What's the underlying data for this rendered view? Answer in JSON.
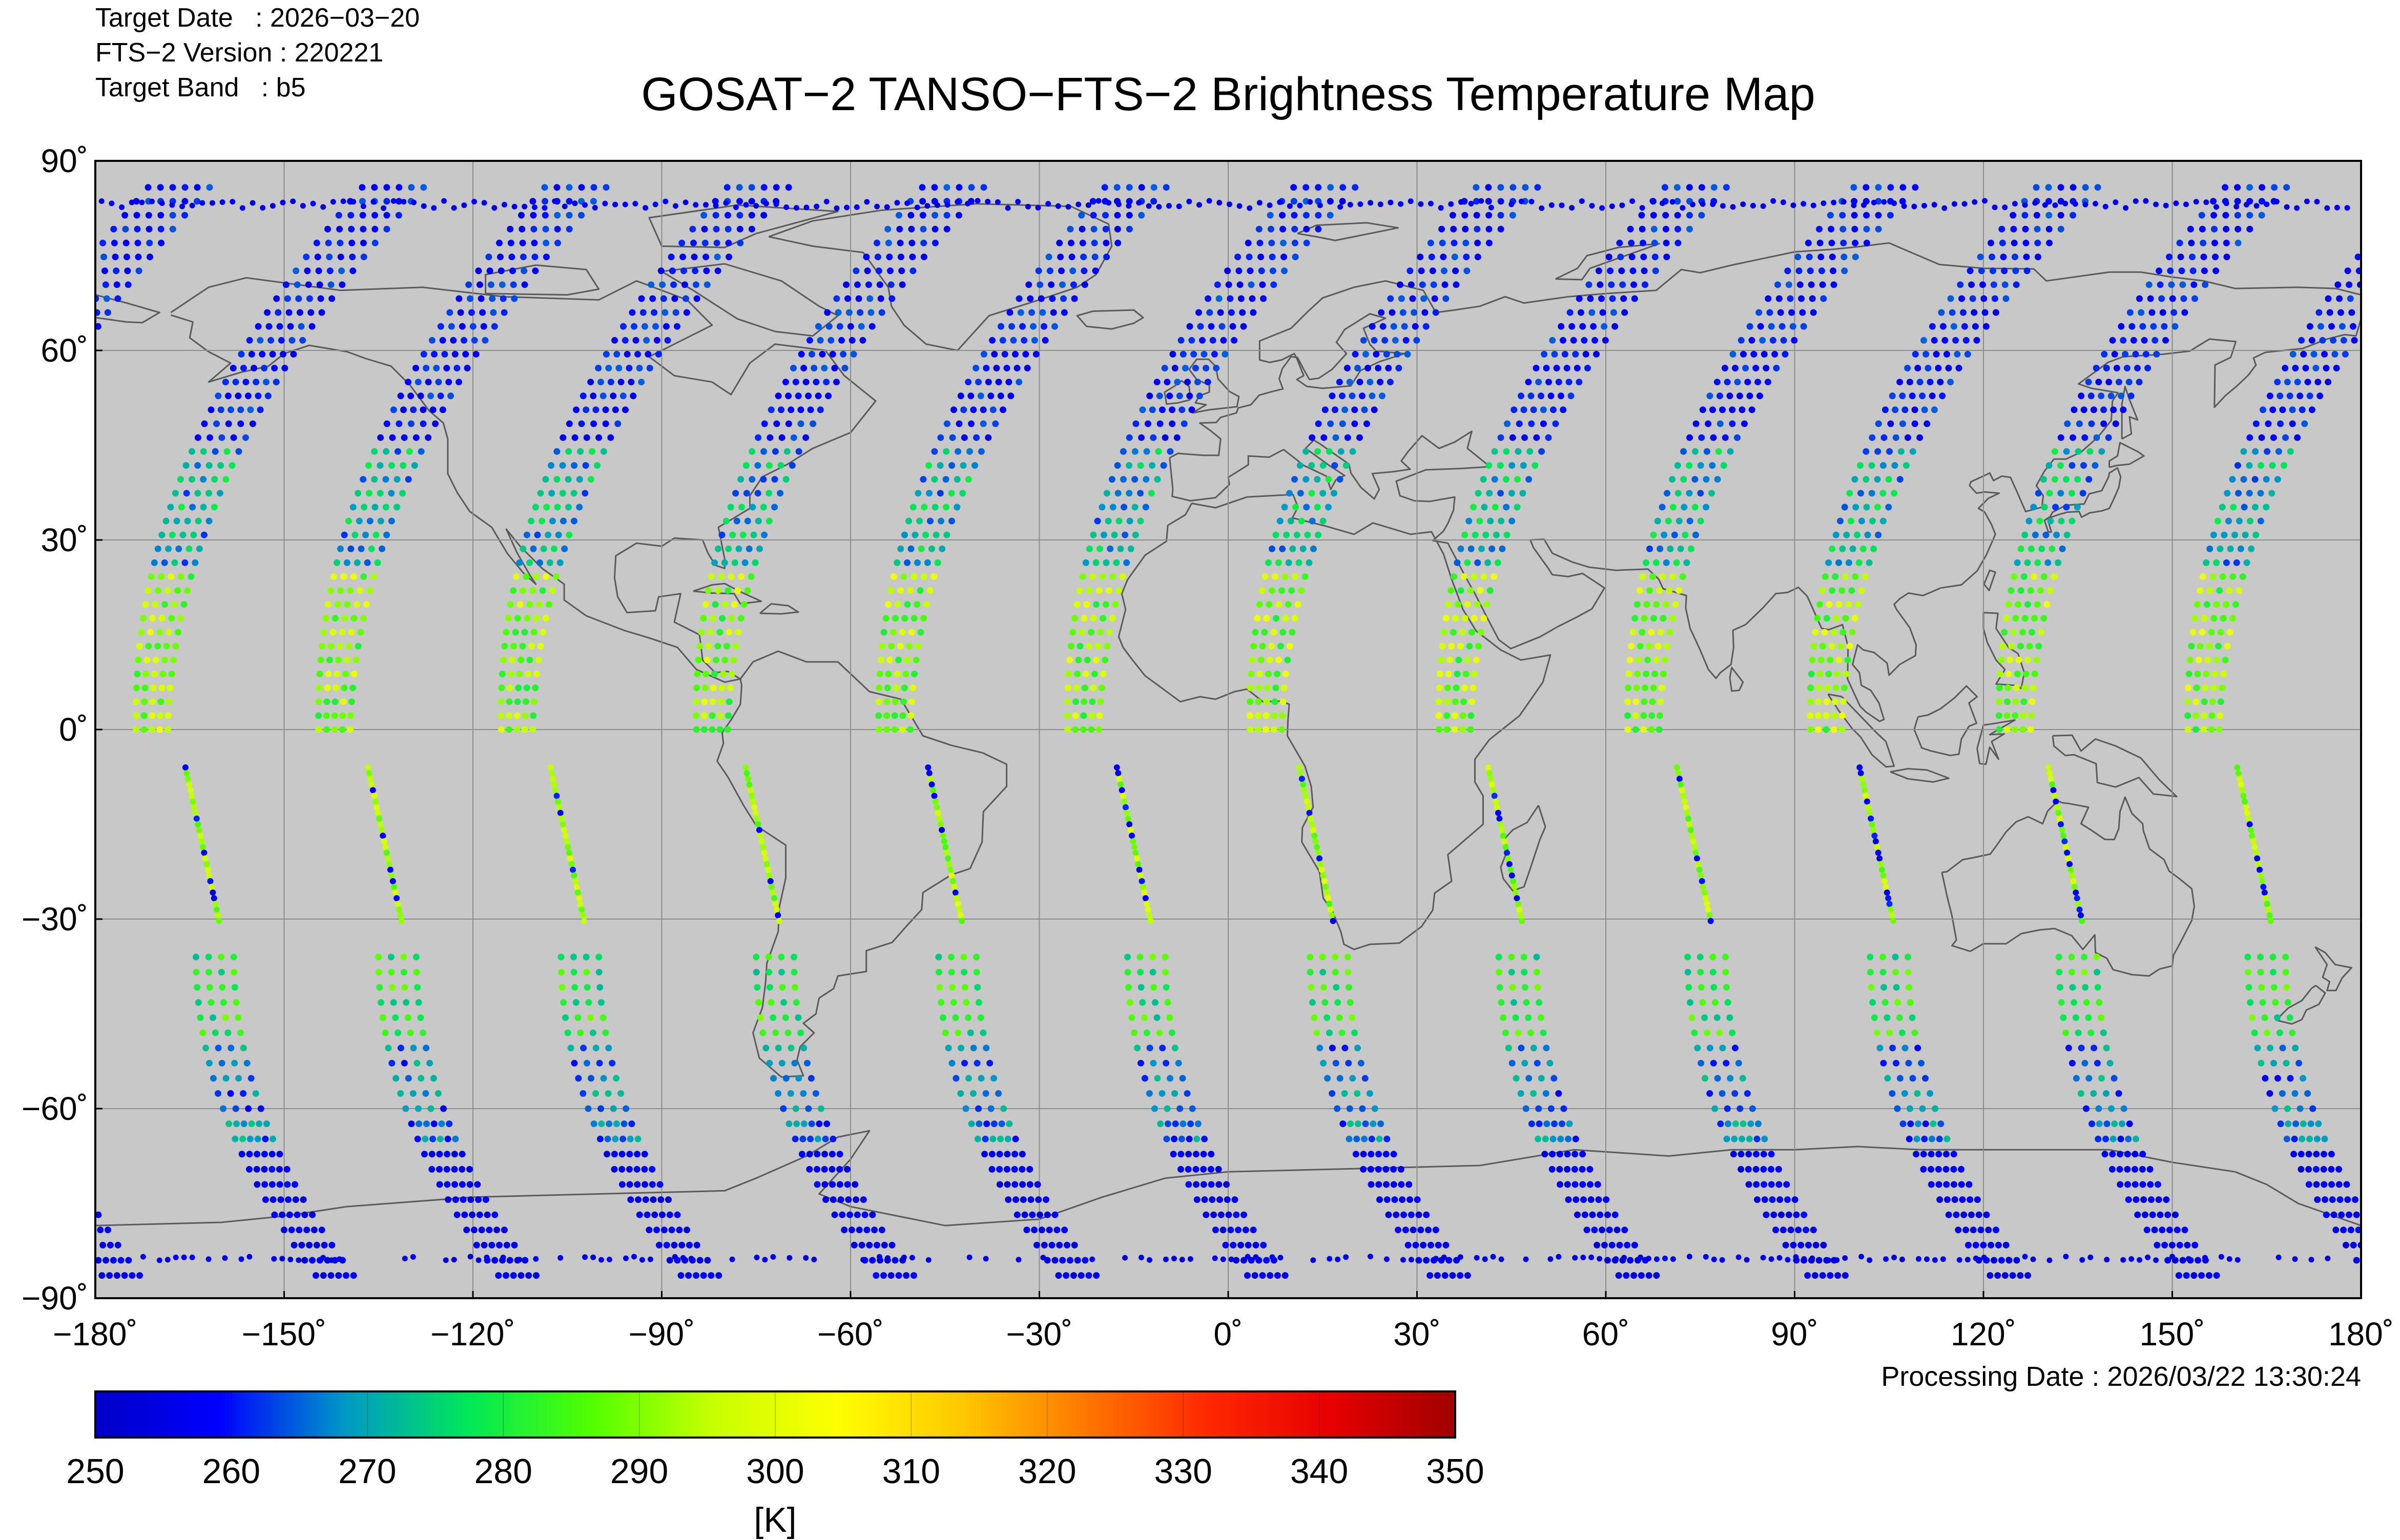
{
  "meta": {
    "target_date": "Target Date   : 2026−03−20",
    "version": "FTS−2 Version : 220221",
    "band": "Target Band   : b5"
  },
  "title": "GOSAT−2 TANSO−FTS−2 Brightness Temperature Map",
  "processing_date": "Processing Date : 2026/03/22 13:30:24",
  "colors": {
    "ocean": "#c8c8c8",
    "gridline": "#8c8c8c",
    "coastline": "#5a5a5a",
    "frame": "#000000"
  },
  "chart_data": {
    "type": "scatter",
    "map_projection": "equirectangular",
    "xlim": [
      -180,
      180
    ],
    "ylim": [
      -90,
      90
    ],
    "grid": true,
    "x_ticks": [
      {
        "value": -180,
        "label": "−180˚"
      },
      {
        "value": -150,
        "label": "−150˚"
      },
      {
        "value": -120,
        "label": "−120˚"
      },
      {
        "value": -90,
        "label": "−90˚"
      },
      {
        "value": -60,
        "label": "−60˚"
      },
      {
        "value": -30,
        "label": "−30˚"
      },
      {
        "value": 0,
        "label": "0˚"
      },
      {
        "value": 30,
        "label": "30˚"
      },
      {
        "value": 60,
        "label": "60˚"
      },
      {
        "value": 90,
        "label": "90˚"
      },
      {
        "value": 120,
        "label": "120˚"
      },
      {
        "value": 150,
        "label": "150˚"
      },
      {
        "value": 180,
        "label": "180˚"
      }
    ],
    "y_ticks": [
      {
        "value": 90,
        "label": "90˚"
      },
      {
        "value": 60,
        "label": "60˚"
      },
      {
        "value": 30,
        "label": "30˚"
      },
      {
        "value": 0,
        "label": "0˚"
      },
      {
        "value": -30,
        "label": "−30˚"
      },
      {
        "value": -60,
        "label": "−60˚"
      },
      {
        "value": -90,
        "label": "−90˚"
      }
    ],
    "orbit_ascending_lon_at_equator": [
      -171,
      -142,
      -113,
      -82,
      -53,
      -23,
      6,
      36,
      66,
      95,
      125,
      155
    ],
    "swaths": {
      "north_wide": {
        "lat_range": [
          0,
          88
        ],
        "cross_track_deg": 5
      },
      "south_narrow": {
        "lat_range": [
          -31,
          -6
        ],
        "cross_track_deg": 0.6
      },
      "south_wide": {
        "lat_range": [
          -87,
          -36
        ],
        "cross_track_deg": 6
      }
    },
    "colorbar": {
      "vmin": 250,
      "vmax": 350,
      "unit": "[K]",
      "ticks": [
        250,
        260,
        270,
        280,
        290,
        300,
        310,
        320,
        330,
        340,
        350
      ],
      "colormap": [
        "#0000c8",
        "#0000ff",
        "#0096c8",
        "#00e65a",
        "#50ff00",
        "#c8ff00",
        "#ffff00",
        "#ffc800",
        "#ff7800",
        "#ff2800",
        "#e60000",
        "#a00000"
      ]
    }
  }
}
